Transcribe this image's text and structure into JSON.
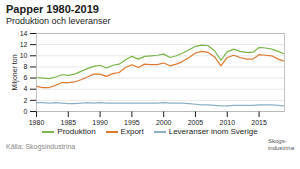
{
  "chart_data": {
    "type": "line",
    "title": "Papper 1980-2019",
    "subtitle": "Produktion och leveranser",
    "ylabel": "Miljoner ton",
    "source": "Källa: Skogsindustrina",
    "annotations": [
      "Skogs-\nindustrina"
    ],
    "x": [
      1980,
      1981,
      1982,
      1983,
      1984,
      1985,
      1986,
      1987,
      1988,
      1989,
      1990,
      1991,
      1992,
      1993,
      1994,
      1995,
      1996,
      1997,
      1998,
      1999,
      2000,
      2001,
      2002,
      2003,
      2004,
      2005,
      2006,
      2007,
      2008,
      2009,
      2010,
      2011,
      2012,
      2013,
      2014,
      2015,
      2016,
      2017,
      2018,
      2019
    ],
    "series": [
      {
        "name": "Produktion",
        "color": "#7ab648",
        "values": [
          6.1,
          6.0,
          5.9,
          6.2,
          6.6,
          6.5,
          6.7,
          7.2,
          7.7,
          8.1,
          8.3,
          7.8,
          8.3,
          8.5,
          9.3,
          9.9,
          9.4,
          9.9,
          10.0,
          10.1,
          10.3,
          9.7,
          10.0,
          10.5,
          11.1,
          11.7,
          11.9,
          11.8,
          10.9,
          9.2,
          10.7,
          11.2,
          10.8,
          10.6,
          10.6,
          11.5,
          11.4,
          11.2,
          10.8,
          10.3
        ]
      },
      {
        "name": "Export",
        "color": "#e07830",
        "values": [
          4.5,
          4.3,
          4.3,
          4.7,
          5.2,
          5.2,
          5.3,
          5.7,
          6.2,
          6.7,
          6.7,
          6.3,
          6.8,
          7.0,
          7.9,
          8.4,
          7.9,
          8.5,
          8.4,
          8.4,
          8.7,
          8.2,
          8.5,
          9.0,
          9.7,
          10.5,
          10.8,
          10.6,
          9.8,
          8.2,
          9.7,
          10.1,
          9.7,
          9.4,
          9.4,
          10.2,
          10.1,
          10.0,
          9.4,
          9.0
        ]
      },
      {
        "name": "Leveranser inom Sverige",
        "color": "#8ab0c8",
        "values": [
          1.6,
          1.6,
          1.5,
          1.6,
          1.5,
          1.4,
          1.4,
          1.5,
          1.6,
          1.5,
          1.6,
          1.5,
          1.5,
          1.5,
          1.5,
          1.5,
          1.5,
          1.5,
          1.5,
          1.5,
          1.6,
          1.5,
          1.5,
          1.5,
          1.4,
          1.3,
          1.2,
          1.2,
          1.1,
          1.0,
          1.0,
          1.1,
          1.1,
          1.1,
          1.1,
          1.2,
          1.2,
          1.2,
          1.1,
          1.0
        ]
      }
    ],
    "xlim": [
      1980,
      2019
    ],
    "xticks": [
      1980,
      1985,
      1990,
      1995,
      2000,
      2005,
      2010,
      2015
    ],
    "ylim": [
      0,
      14
    ],
    "yticks": [
      0,
      2,
      4,
      6,
      8,
      10,
      12,
      14
    ],
    "grid": true
  }
}
